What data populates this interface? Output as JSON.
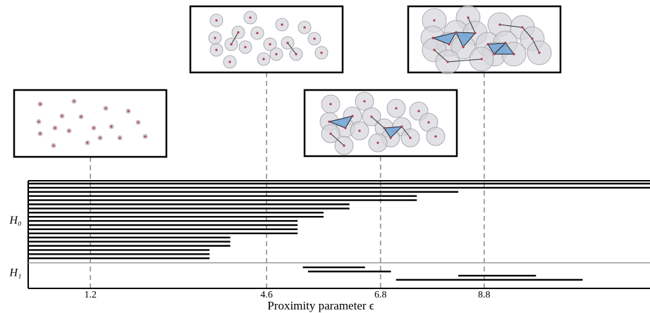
{
  "chart_data": {
    "type": "barcode",
    "xlabel": "Proximity parameter ϵ",
    "xlim": [
      0,
      12
    ],
    "xticks": [
      1.2,
      4.6,
      6.8,
      8.8
    ],
    "series": [
      {
        "name": "H₀",
        "color": "#000000",
        "births": [
          0,
          0,
          0,
          0,
          0,
          0,
          0,
          0,
          0,
          0,
          0,
          0,
          0,
          0,
          0,
          0,
          0,
          0,
          0
        ],
        "deaths": [
          12,
          12,
          8.3,
          7.5,
          7.5,
          6.2,
          6.2,
          5.7,
          5.7,
          5.2,
          5.2,
          5.2,
          5.2,
          3.9,
          3.9,
          3.9,
          3.5,
          3.5,
          3.5
        ]
      },
      {
        "name": "H₁",
        "color": "#000000",
        "births": [
          5.3,
          5.4,
          8.3,
          7.1
        ],
        "deaths": [
          6.5,
          7.0,
          9.8,
          10.7
        ]
      }
    ]
  }
}
